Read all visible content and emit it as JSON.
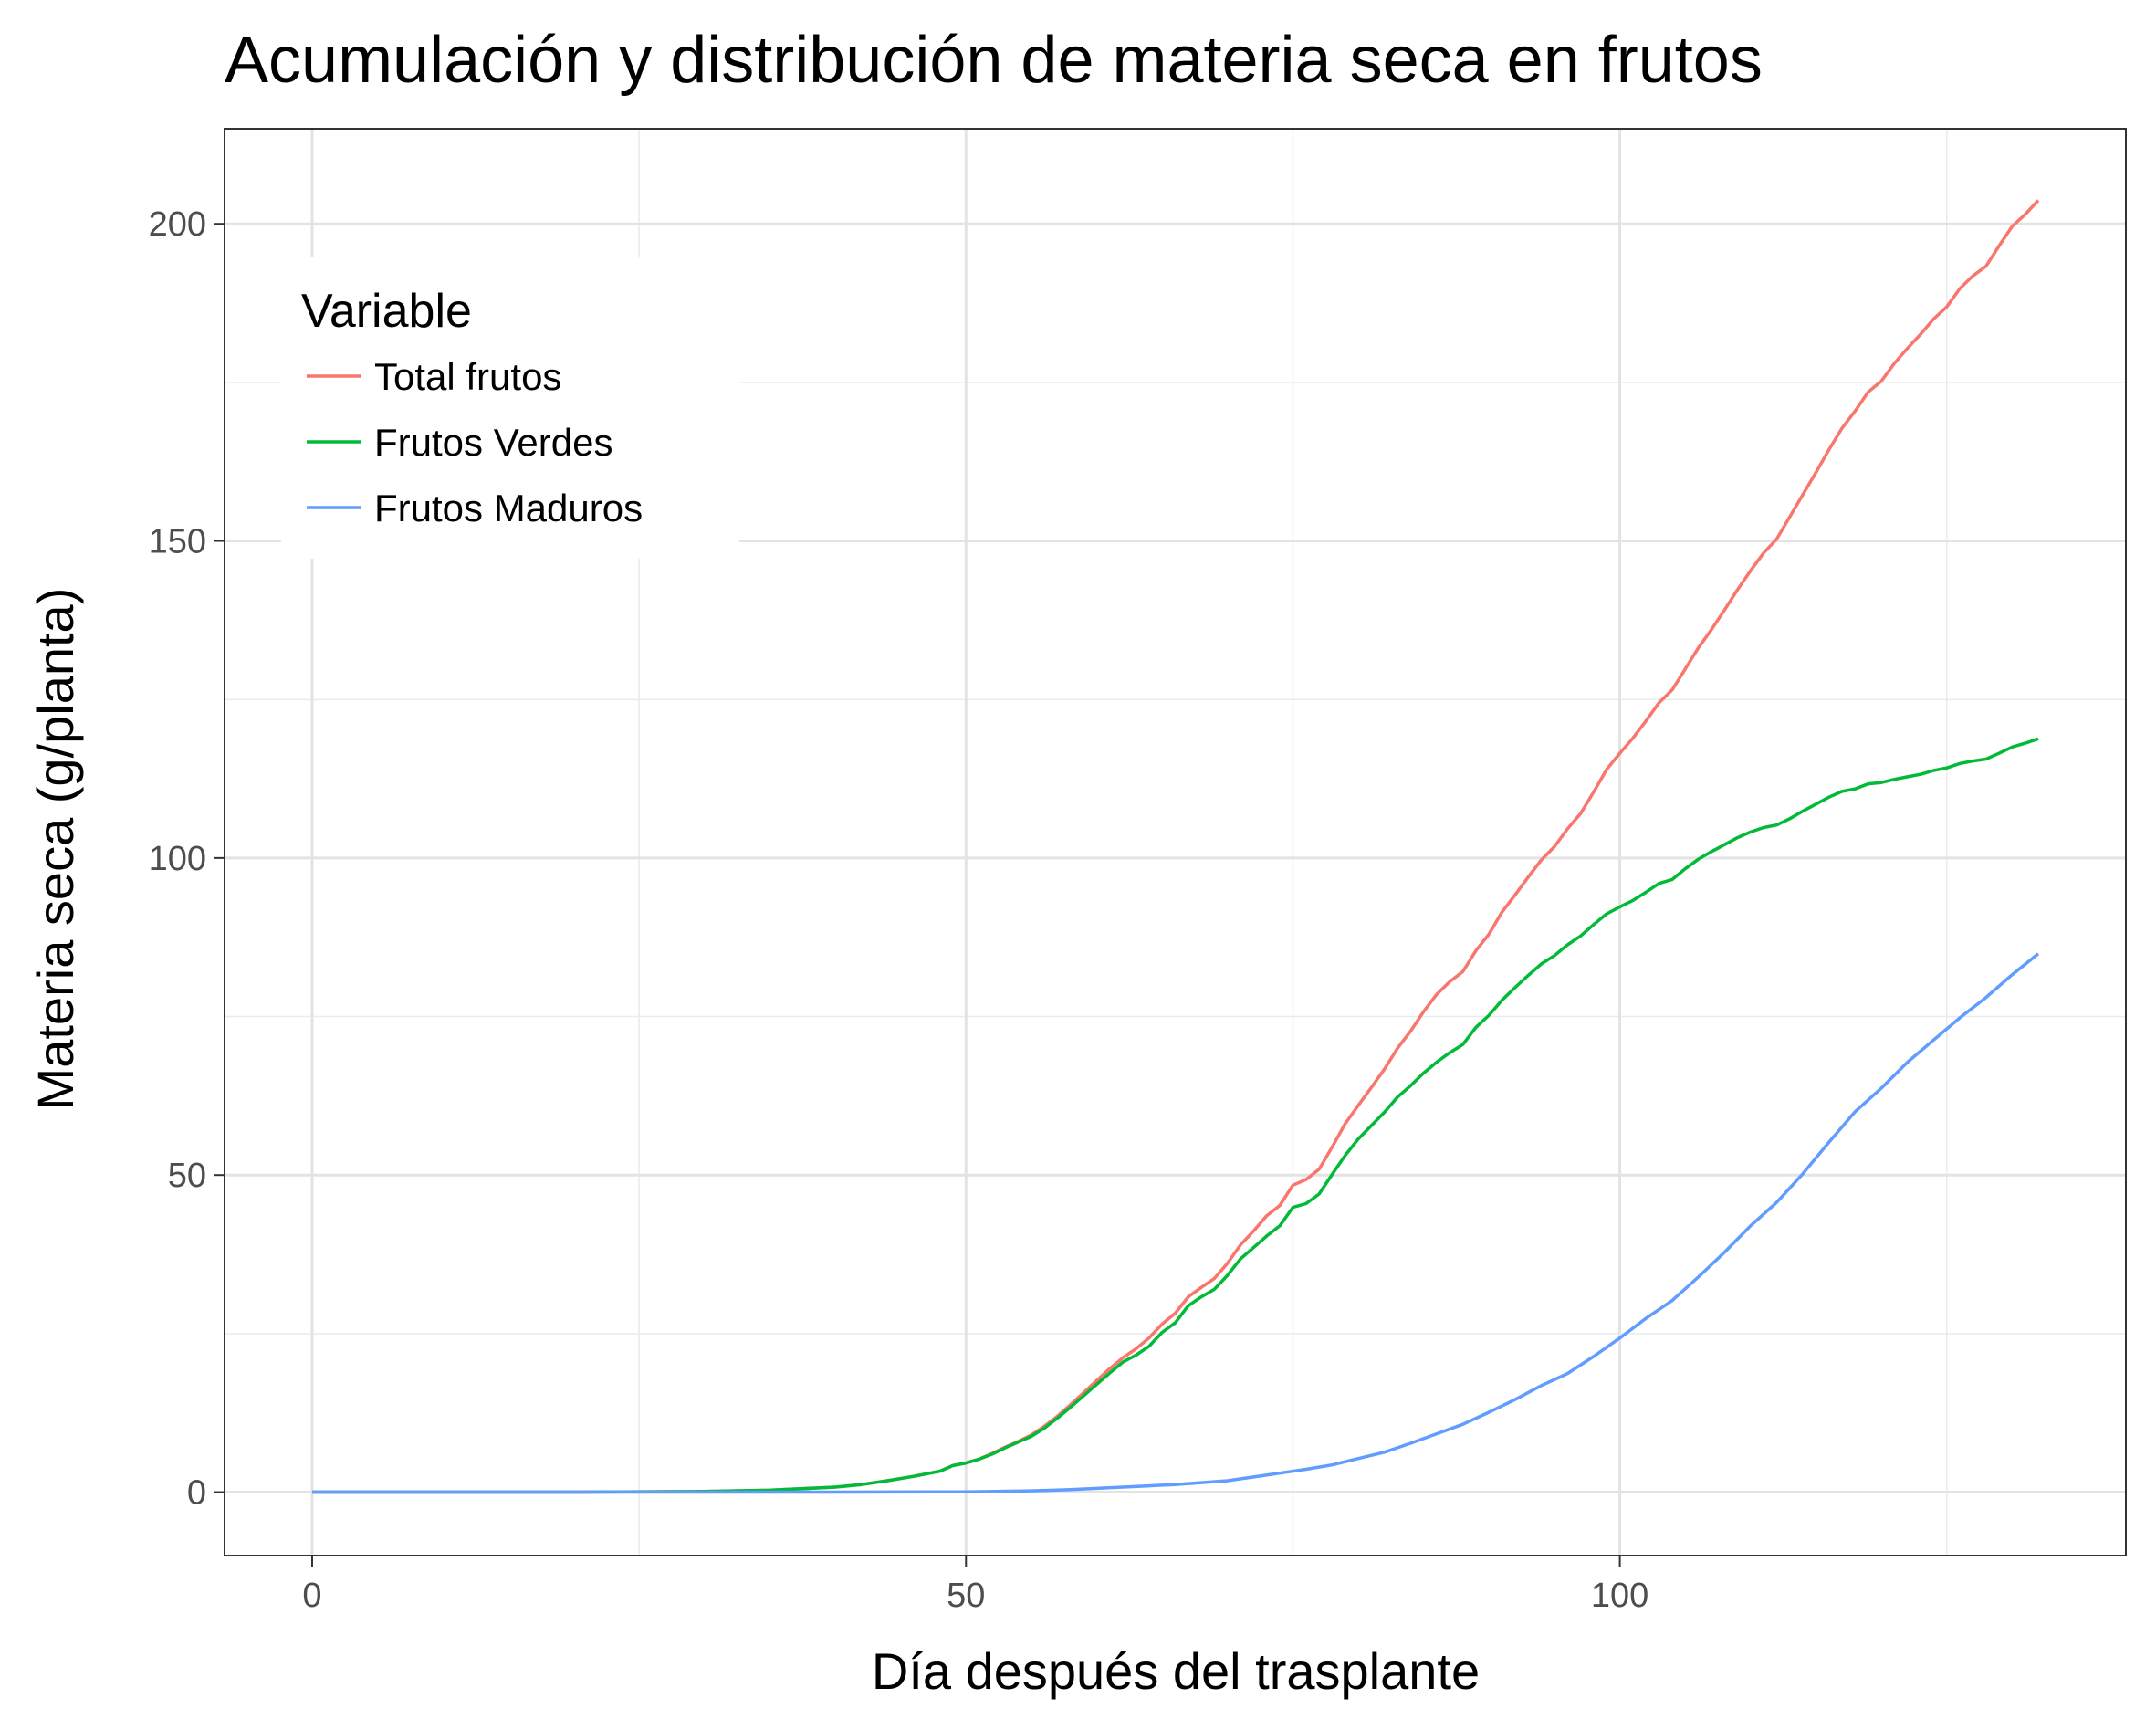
{
  "chart_data": {
    "type": "line",
    "title": "Acumulación y distribución de materia seca en frutos",
    "xlabel": "Día después del trasplante",
    "ylabel": "Materia seca (g/planta)",
    "xlim": [
      -6.7,
      138.7
    ],
    "ylim": [
      -10,
      215
    ],
    "x_ticks": [
      0,
      50,
      100
    ],
    "x_tick_labels": [
      "0",
      "50",
      "100"
    ],
    "x_minor_ticks": [
      25,
      75,
      125
    ],
    "y_ticks": [
      0,
      50,
      100,
      150,
      200
    ],
    "y_tick_labels": [
      "0",
      "50",
      "100",
      "150",
      "200"
    ],
    "y_minor_ticks": [
      25,
      75,
      125,
      175
    ],
    "grid": true,
    "legend": {
      "title": "Variable",
      "position": "top-left-inside"
    },
    "series": [
      {
        "name": "Total frutos",
        "color": "#F8766D",
        "points": [
          [
            0,
            0
          ],
          [
            10,
            0
          ],
          [
            20,
            0
          ],
          [
            30,
            0.1
          ],
          [
            35,
            0.3
          ],
          [
            40,
            0.8
          ],
          [
            42,
            1.2
          ],
          [
            44,
            1.8
          ],
          [
            46,
            2.5
          ],
          [
            48,
            3.3
          ],
          [
            49,
            4.2
          ],
          [
            50,
            4.6
          ],
          [
            51,
            5.2
          ],
          [
            52,
            6.1
          ],
          [
            53,
            7.1
          ],
          [
            54,
            8.0
          ],
          [
            55,
            9.0
          ],
          [
            56,
            10.4
          ],
          [
            57,
            12.0
          ],
          [
            58,
            13.8
          ],
          [
            59,
            15.7
          ],
          [
            60,
            17.6
          ],
          [
            61,
            19.5
          ],
          [
            62,
            21.2
          ],
          [
            63,
            22.6
          ],
          [
            64,
            24.3
          ],
          [
            65,
            26.5
          ],
          [
            66,
            28.2
          ],
          [
            67,
            30.8
          ],
          [
            68,
            32.3
          ],
          [
            69,
            33.7
          ],
          [
            70,
            36.1
          ],
          [
            71,
            39.0
          ],
          [
            72,
            41.2
          ],
          [
            73,
            43.6
          ],
          [
            74,
            45.2
          ],
          [
            75,
            48.4
          ],
          [
            76,
            49.3
          ],
          [
            77,
            50.9
          ],
          [
            78,
            54.4
          ],
          [
            79,
            58.1
          ],
          [
            80,
            61.0
          ],
          [
            81,
            63.8
          ],
          [
            82,
            66.7
          ],
          [
            83,
            70.0
          ],
          [
            84,
            72.7
          ],
          [
            85,
            75.8
          ],
          [
            86,
            78.5
          ],
          [
            87,
            80.5
          ],
          [
            88,
            82.1
          ],
          [
            89,
            85.4
          ],
          [
            90,
            88.0
          ],
          [
            91,
            91.5
          ],
          [
            92,
            94.2
          ],
          [
            93,
            97.0
          ],
          [
            94,
            99.7
          ],
          [
            95,
            101.8
          ],
          [
            96,
            104.6
          ],
          [
            97,
            107.0
          ],
          [
            98,
            110.4
          ],
          [
            99,
            114.0
          ],
          [
            100,
            116.5
          ],
          [
            101,
            118.9
          ],
          [
            102,
            121.6
          ],
          [
            103,
            124.5
          ],
          [
            104,
            126.5
          ],
          [
            105,
            129.8
          ],
          [
            106,
            133.1
          ],
          [
            107,
            136.0
          ],
          [
            108,
            139.1
          ],
          [
            109,
            142.3
          ],
          [
            110,
            145.3
          ],
          [
            111,
            148.1
          ],
          [
            112,
            150.3
          ],
          [
            113,
            153.8
          ],
          [
            114,
            157.3
          ],
          [
            115,
            160.8
          ],
          [
            116,
            164.4
          ],
          [
            117,
            167.8
          ],
          [
            118,
            170.5
          ],
          [
            119,
            173.5
          ],
          [
            120,
            175.2
          ],
          [
            121,
            178.0
          ],
          [
            122,
            180.4
          ],
          [
            123,
            182.6
          ],
          [
            124,
            185.0
          ],
          [
            125,
            186.9
          ],
          [
            126,
            189.8
          ],
          [
            127,
            191.8
          ],
          [
            128,
            193.3
          ],
          [
            129,
            196.5
          ],
          [
            130,
            199.6
          ],
          [
            131,
            201.5
          ],
          [
            132,
            203.7
          ]
        ]
      },
      {
        "name": "Frutos Verdes",
        "color": "#00BA38",
        "points": [
          [
            0,
            0
          ],
          [
            10,
            0
          ],
          [
            20,
            0
          ],
          [
            30,
            0.1
          ],
          [
            35,
            0.3
          ],
          [
            40,
            0.8
          ],
          [
            42,
            1.2
          ],
          [
            44,
            1.8
          ],
          [
            46,
            2.5
          ],
          [
            48,
            3.3
          ],
          [
            49,
            4.2
          ],
          [
            50,
            4.6
          ],
          [
            51,
            5.2
          ],
          [
            52,
            6.0
          ],
          [
            53,
            7.0
          ],
          [
            54,
            7.9
          ],
          [
            55,
            8.8
          ],
          [
            56,
            10.1
          ],
          [
            57,
            11.7
          ],
          [
            58,
            13.4
          ],
          [
            59,
            15.2
          ],
          [
            60,
            17.0
          ],
          [
            61,
            18.8
          ],
          [
            62,
            20.5
          ],
          [
            63,
            21.6
          ],
          [
            64,
            23.0
          ],
          [
            65,
            25.2
          ],
          [
            66,
            26.7
          ],
          [
            67,
            29.4
          ],
          [
            68,
            30.8
          ],
          [
            69,
            32.0
          ],
          [
            70,
            34.2
          ],
          [
            71,
            36.8
          ],
          [
            72,
            38.6
          ],
          [
            73,
            40.4
          ],
          [
            74,
            42.0
          ],
          [
            75,
            44.9
          ],
          [
            76,
            45.5
          ],
          [
            77,
            47.0
          ],
          [
            78,
            50.1
          ],
          [
            79,
            53.1
          ],
          [
            80,
            55.7
          ],
          [
            81,
            57.8
          ],
          [
            82,
            59.9
          ],
          [
            83,
            62.3
          ],
          [
            84,
            64.1
          ],
          [
            85,
            66.1
          ],
          [
            86,
            67.8
          ],
          [
            87,
            69.3
          ],
          [
            88,
            70.6
          ],
          [
            89,
            73.3
          ],
          [
            90,
            75.2
          ],
          [
            91,
            77.6
          ],
          [
            92,
            79.6
          ],
          [
            93,
            81.5
          ],
          [
            94,
            83.3
          ],
          [
            95,
            84.6
          ],
          [
            96,
            86.3
          ],
          [
            97,
            87.7
          ],
          [
            98,
            89.5
          ],
          [
            99,
            91.2
          ],
          [
            100,
            92.3
          ],
          [
            101,
            93.3
          ],
          [
            102,
            94.6
          ],
          [
            103,
            96.0
          ],
          [
            104,
            96.6
          ],
          [
            105,
            98.3
          ],
          [
            106,
            99.8
          ],
          [
            107,
            101.0
          ],
          [
            108,
            102.1
          ],
          [
            109,
            103.2
          ],
          [
            110,
            104.1
          ],
          [
            111,
            104.8
          ],
          [
            112,
            105.2
          ],
          [
            113,
            106.2
          ],
          [
            114,
            107.4
          ],
          [
            115,
            108.5
          ],
          [
            116,
            109.6
          ],
          [
            117,
            110.5
          ],
          [
            118,
            110.9
          ],
          [
            119,
            111.7
          ],
          [
            120,
            111.9
          ],
          [
            121,
            112.4
          ],
          [
            122,
            112.8
          ],
          [
            123,
            113.2
          ],
          [
            124,
            113.8
          ],
          [
            125,
            114.2
          ],
          [
            126,
            114.9
          ],
          [
            127,
            115.3
          ],
          [
            128,
            115.6
          ],
          [
            129,
            116.5
          ],
          [
            130,
            117.5
          ],
          [
            131,
            118.1
          ],
          [
            132,
            118.8
          ]
        ]
      },
      {
        "name": "Frutos Maduros",
        "color": "#619CFF",
        "points": [
          [
            0,
            0
          ],
          [
            10,
            0
          ],
          [
            20,
            0
          ],
          [
            30,
            0
          ],
          [
            40,
            0
          ],
          [
            50,
            0.05
          ],
          [
            55,
            0.2
          ],
          [
            58,
            0.4
          ],
          [
            60,
            0.6
          ],
          [
            62,
            0.8
          ],
          [
            64,
            1.0
          ],
          [
            66,
            1.2
          ],
          [
            68,
            1.5
          ],
          [
            70,
            1.8
          ],
          [
            72,
            2.4
          ],
          [
            74,
            3.0
          ],
          [
            76,
            3.6
          ],
          [
            78,
            4.3
          ],
          [
            80,
            5.3
          ],
          [
            82,
            6.3
          ],
          [
            84,
            7.7
          ],
          [
            86,
            9.2
          ],
          [
            88,
            10.7
          ],
          [
            90,
            12.6
          ],
          [
            92,
            14.6
          ],
          [
            94,
            16.8
          ],
          [
            96,
            18.7
          ],
          [
            98,
            21.4
          ],
          [
            100,
            24.3
          ],
          [
            102,
            27.4
          ],
          [
            104,
            30.2
          ],
          [
            106,
            33.9
          ],
          [
            108,
            37.8
          ],
          [
            110,
            42.0
          ],
          [
            112,
            45.7
          ],
          [
            114,
            50.2
          ],
          [
            116,
            55.2
          ],
          [
            118,
            60.0
          ],
          [
            120,
            63.7
          ],
          [
            122,
            67.8
          ],
          [
            124,
            71.3
          ],
          [
            126,
            74.8
          ],
          [
            128,
            78.0
          ],
          [
            130,
            81.6
          ],
          [
            132,
            84.9
          ]
        ]
      }
    ]
  }
}
